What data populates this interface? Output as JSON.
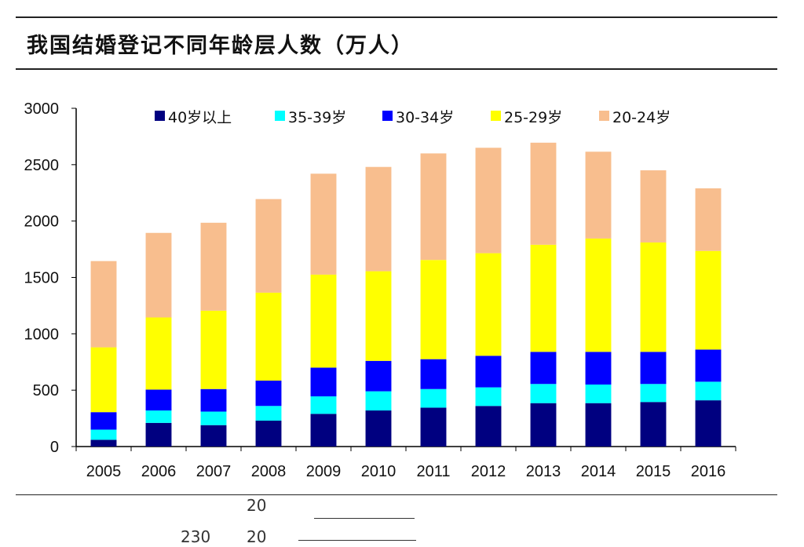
{
  "title": "我国结婚登记不同年龄层人数（万人）",
  "chart_data": {
    "type": "bar",
    "stacked": true,
    "title": "我国结婚登记不同年龄层人数（万人）",
    "xlabel": "",
    "ylabel": "",
    "ylim": [
      0,
      3000
    ],
    "yticks": [
      0,
      500,
      1000,
      1500,
      2000,
      2500,
      3000
    ],
    "grid": false,
    "legend_position": "top",
    "categories": [
      "2005",
      "2006",
      "2007",
      "2008",
      "2009",
      "2010",
      "2011",
      "2012",
      "2013",
      "2014",
      "2015",
      "2016"
    ],
    "series": [
      {
        "name": "40岁以上",
        "color": "#000080",
        "values": [
          60,
          210,
          190,
          230,
          290,
          320,
          345,
          360,
          385,
          385,
          395,
          410
        ]
      },
      {
        "name": "35-39岁",
        "color": "#00FFFF",
        "values": [
          90,
          110,
          120,
          130,
          155,
          170,
          165,
          165,
          170,
          165,
          160,
          165
        ]
      },
      {
        "name": "30-34岁",
        "color": "#0000FF",
        "values": [
          155,
          185,
          200,
          225,
          255,
          270,
          265,
          280,
          285,
          290,
          285,
          285
        ]
      },
      {
        "name": "25-29岁",
        "color": "#FFFF00",
        "values": [
          575,
          640,
          695,
          780,
          825,
          795,
          880,
          910,
          950,
          1005,
          970,
          875
        ]
      },
      {
        "name": "20-24岁",
        "color": "#F8BE8E",
        "values": [
          765,
          750,
          780,
          830,
          895,
          925,
          945,
          935,
          905,
          770,
          640,
          555
        ]
      }
    ]
  },
  "footer_fragments": [
    "20",
    "230",
    "20"
  ]
}
